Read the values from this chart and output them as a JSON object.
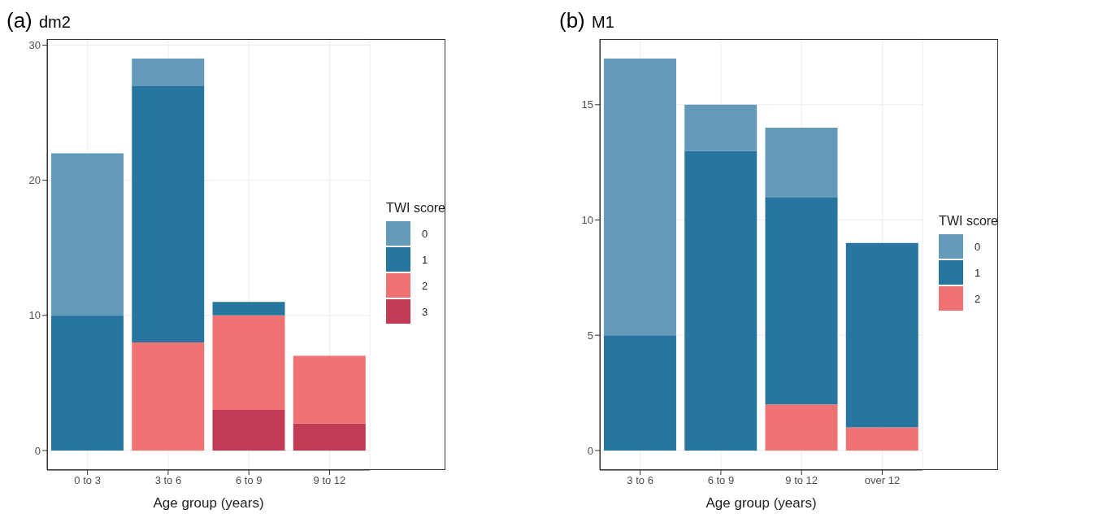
{
  "chart_data": [
    {
      "type": "bar",
      "title": "dm2",
      "annotations": [
        "(a)"
      ],
      "xlabel": "Age group (years)",
      "legend_title": "TWI score",
      "legend": "right",
      "grid": true,
      "stacked": true,
      "categories": [
        "0 to 3",
        "3 to 6",
        "6 to 9",
        "9 to 12"
      ],
      "ylim": [
        -1.45,
        30.45
      ],
      "yticks": [
        0,
        10,
        20,
        30
      ],
      "series": [
        {
          "name": "3",
          "color": "#c13b55",
          "values": [
            null,
            null,
            3,
            2
          ]
        },
        {
          "name": "2",
          "color": "#f07373",
          "values": [
            null,
            8,
            7,
            5
          ]
        },
        {
          "name": "1",
          "color": "#28769f",
          "values": [
            10,
            19,
            1,
            null
          ]
        },
        {
          "name": "0",
          "color": "#6399b9",
          "values": [
            12,
            2,
            null,
            null
          ]
        }
      ]
    },
    {
      "type": "bar",
      "title": "M1",
      "annotations": [
        "(b)"
      ],
      "xlabel": "Age group (years)",
      "legend_title": "TWI score",
      "legend": "right",
      "grid": true,
      "stacked": true,
      "categories": [
        "3 to 6",
        "6 to 9",
        "9 to 12",
        "over 12"
      ],
      "ylim": [
        -0.85,
        17.85
      ],
      "yticks": [
        0,
        5,
        10,
        15
      ],
      "series": [
        {
          "name": "2",
          "color": "#f07373",
          "values": [
            null,
            null,
            2,
            1
          ]
        },
        {
          "name": "1",
          "color": "#28769f",
          "values": [
            5,
            13,
            9,
            8
          ]
        },
        {
          "name": "0",
          "color": "#6399b9",
          "values": [
            12,
            2,
            3,
            null
          ]
        }
      ]
    }
  ]
}
